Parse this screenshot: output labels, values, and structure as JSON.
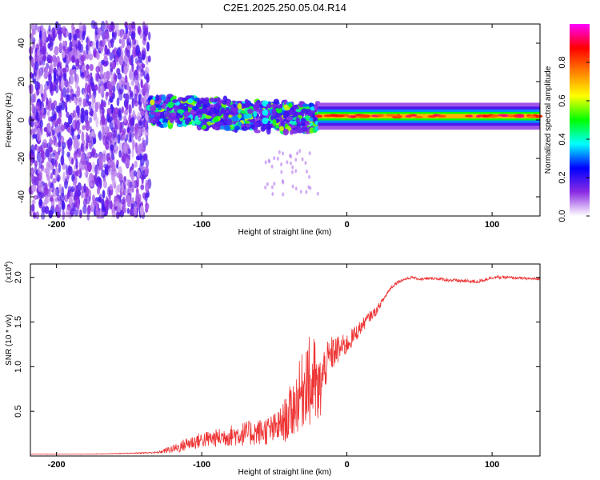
{
  "chart_data": [
    {
      "type": "heatmap",
      "title": "C2E1.2025.250.05.04.R14",
      "xlabel": "Height of straight line (km)",
      "ylabel": "Frequency (Hz)",
      "xlim": [
        -218,
        133
      ],
      "ylim": [
        -50,
        50
      ],
      "xticks": [
        -200,
        -100,
        0,
        100
      ],
      "xtick_labels": [
        "-200",
        "-100",
        "0",
        "100"
      ],
      "yticks": [
        -40,
        -20,
        0,
        20,
        40
      ],
      "ytick_labels": [
        "-40",
        "-20",
        "0",
        "20",
        "40"
      ],
      "colorbar": {
        "label": "Normalized spectral amplitude",
        "range": [
          0,
          1
        ],
        "ticks": [
          0.0,
          0.2,
          0.4,
          0.6,
          0.8
        ],
        "tick_labels": [
          "0.0",
          "0.2",
          "0.4",
          "0.6",
          "0.8"
        ],
        "colors": [
          "#ffffff",
          "#8a2be2",
          "#0000ff",
          "#00ffff",
          "#00ff00",
          "#ffff00",
          "#ff8000",
          "#ff0000",
          "#ff00ff"
        ]
      },
      "regions": [
        {
          "name": "noise",
          "x_range": [
            -218,
            -136
          ],
          "freq_range": [
            -50,
            50
          ],
          "amplitude": 0.1
        },
        {
          "name": "scatter-band",
          "x_range": [
            -136,
            -20
          ],
          "freq_center": 5,
          "freq_halfwidth": 6,
          "amplitude": 0.3
        },
        {
          "name": "signal-line",
          "x_range": [
            -20,
            133
          ],
          "freq_center": 2,
          "freq_halfwidth": 2,
          "amplitude": 0.8
        }
      ]
    },
    {
      "type": "line",
      "xlabel": "Height of straight line (km)",
      "ylabel": "SNR (10 * v/v)",
      "yscale_label": "(x10",
      "yscale_exp": "4",
      "xlim": [
        -218,
        133
      ],
      "ylim": [
        0,
        2.15
      ],
      "xticks": [
        -200,
        -100,
        0,
        100
      ],
      "xtick_labels": [
        "-200",
        "-100",
        "0",
        "100"
      ],
      "yticks": [
        0.5,
        1.0,
        1.5,
        2.0
      ],
      "ytick_labels": [
        "0.5",
        "1.0",
        "1.5",
        "2.0"
      ],
      "color": "#ee3333",
      "series": [
        {
          "name": "SNR",
          "x": [
            -218,
            -180,
            -150,
            -130,
            -125,
            -115,
            -110,
            -100,
            -90,
            -80,
            -70,
            -60,
            -50,
            -45,
            -40,
            -35,
            -30,
            -27,
            -25,
            -23,
            -20,
            -15,
            -10,
            -5,
            0,
            5,
            10,
            15,
            20,
            25,
            30,
            35,
            40,
            45,
            50,
            60,
            70,
            80,
            90,
            100,
            110,
            120,
            133
          ],
          "y": [
            0.02,
            0.02,
            0.03,
            0.04,
            0.06,
            0.1,
            0.14,
            0.18,
            0.2,
            0.23,
            0.25,
            0.27,
            0.3,
            0.36,
            0.45,
            0.6,
            0.75,
            0.95,
            0.7,
            0.9,
            0.65,
            1.0,
            1.15,
            1.2,
            1.25,
            1.35,
            1.45,
            1.55,
            1.62,
            1.75,
            1.88,
            1.95,
            1.98,
            2.0,
            1.98,
            1.99,
            1.97,
            1.96,
            1.95,
            2.0,
            2.0,
            1.99,
            1.98
          ],
          "noise": [
            0.002,
            0.002,
            0.005,
            0.01,
            0.03,
            0.06,
            0.08,
            0.09,
            0.1,
            0.12,
            0.14,
            0.15,
            0.18,
            0.2,
            0.3,
            0.35,
            0.45,
            0.5,
            0.55,
            0.5,
            0.45,
            0.25,
            0.2,
            0.15,
            0.12,
            0.1,
            0.08,
            0.06,
            0.05,
            0.03,
            0.02,
            0.02,
            0.015,
            0.015,
            0.015,
            0.015,
            0.02,
            0.02,
            0.02,
            0.02,
            0.015,
            0.015,
            0.015
          ]
        }
      ]
    }
  ]
}
